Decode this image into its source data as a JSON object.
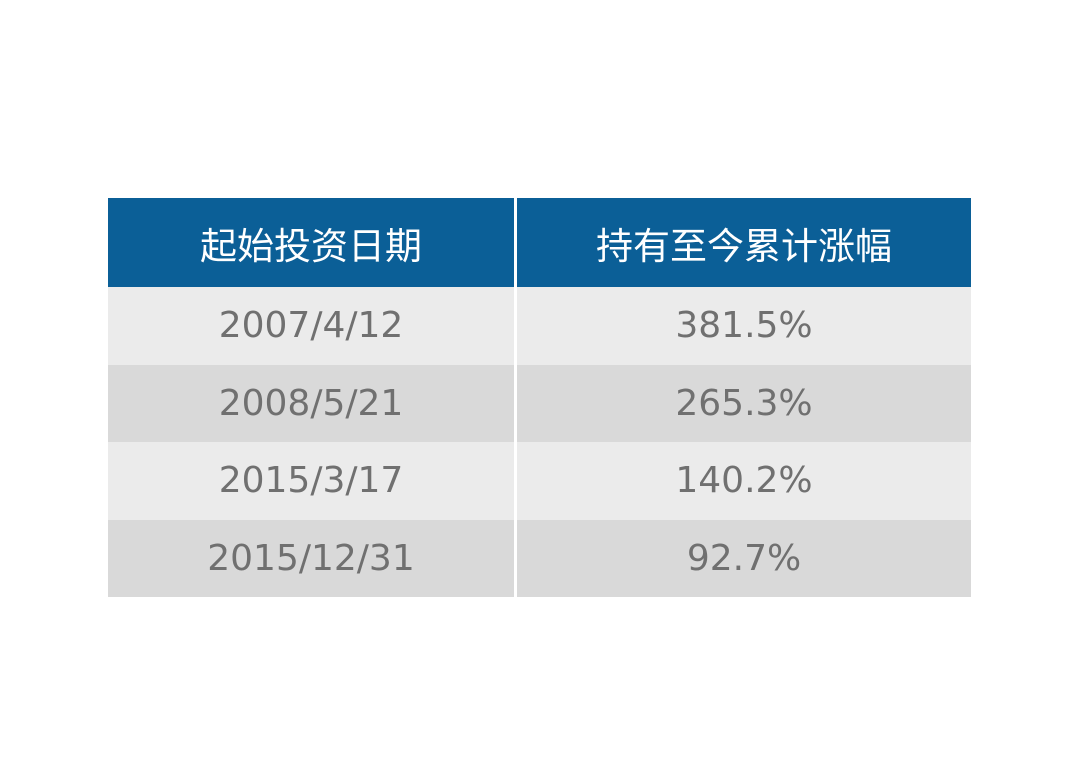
{
  "table": {
    "header": [
      "起始投资日期",
      "持有至今累计涨幅"
    ],
    "rows": [
      [
        "2007/4/12",
        "381.5%"
      ],
      [
        "2008/5/21",
        "265.3%"
      ],
      [
        "2015/3/17",
        "140.2%"
      ],
      [
        "2015/12/31",
        "92.7%"
      ]
    ]
  }
}
